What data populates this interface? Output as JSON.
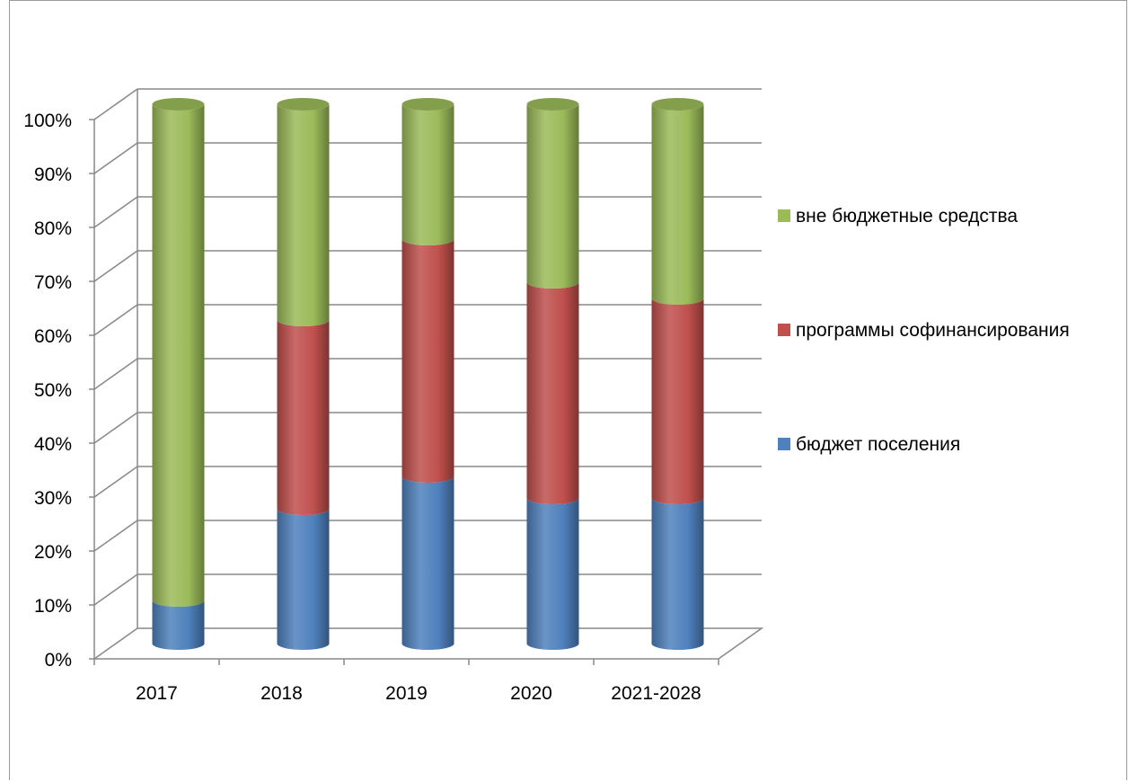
{
  "chart_data": {
    "type": "bar",
    "stacked": true,
    "percent_stacked": true,
    "style": "3d-cylinder",
    "title": "",
    "xlabel": "",
    "ylabel": "",
    "categories": [
      "2017",
      "2018",
      "2019",
      "2020",
      "2021-2028"
    ],
    "series": [
      {
        "name": "бюджет поселения",
        "values": [
          8,
          25,
          31,
          27,
          27
        ],
        "color": "#4f81bd"
      },
      {
        "name": "программы софинансирования",
        "values": [
          0,
          35,
          44,
          40,
          37
        ],
        "color": "#c0504d"
      },
      {
        "name": "вне бюджетные средства",
        "values": [
          92,
          40,
          25,
          33,
          36
        ],
        "color": "#9bbb59"
      }
    ],
    "ylim": [
      0,
      100
    ],
    "yticks": [
      "0%",
      "10%",
      "20%",
      "30%",
      "40%",
      "50%",
      "60%",
      "70%",
      "80%",
      "90%",
      "100%"
    ],
    "grid": true,
    "legend": {
      "placement": "right",
      "order": [
        "вне бюджетные средства",
        "программы софинансирования",
        "бюджет поселения"
      ]
    }
  }
}
